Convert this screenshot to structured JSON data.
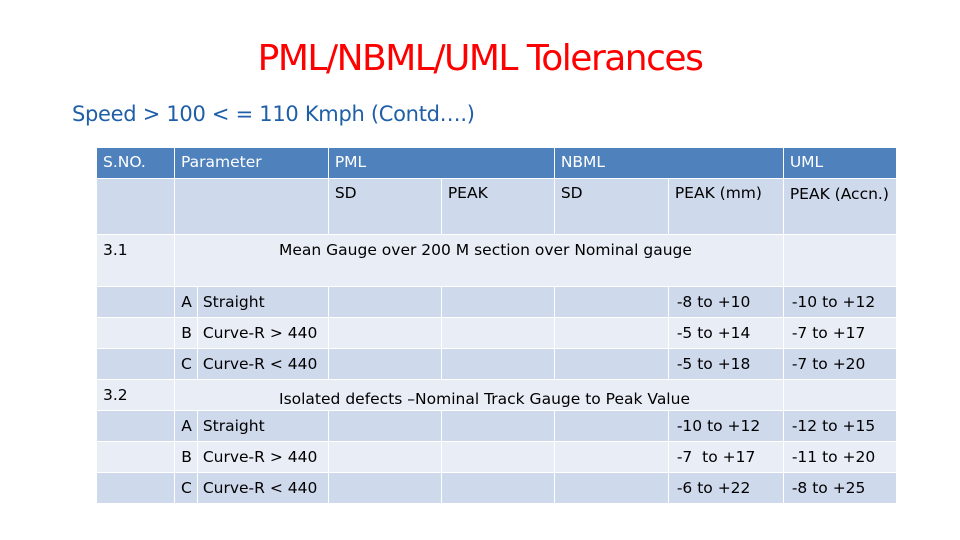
{
  "title": "PML/NBML/UML Tolerances",
  "subtitle": "Speed > 100  < = 110 Kmph (Contd….)",
  "table": {
    "headers": {
      "sno": "S.NO.",
      "parameter": "Parameter",
      "pml": "PML",
      "nbml": "NBML",
      "uml": "UML"
    },
    "subheaders": {
      "pml_sd": "SD",
      "pml_peak": "PEAK",
      "nbml_sd": "SD",
      "nbml_peak": "PEAK (mm)",
      "uml_peak": "PEAK (Accn.)"
    },
    "sections": [
      {
        "sno": "3.1",
        "title": "Mean Gauge over 200 M section over Nominal gauge",
        "rows": [
          {
            "letter": "A",
            "param": "Straight",
            "nbml_peak": "-8 to +10",
            "uml_peak": "-10 to +12"
          },
          {
            "letter": "B",
            "param": "Curve-R > 440",
            "nbml_peak": "-5 to +14",
            "uml_peak": "-7 to +17"
          },
          {
            "letter": "C",
            "param": "Curve-R < 440",
            "nbml_peak": "-5 to +18",
            "uml_peak": "-7 to +20"
          }
        ]
      },
      {
        "sno": "3.2",
        "title": "Isolated defects –Nominal Track Gauge  to Peak Value",
        "rows": [
          {
            "letter": "A",
            "param": "Straight",
            "nbml_peak": "-10 to +12",
            "uml_peak": "-12 to +15"
          },
          {
            "letter": "B",
            "param": "Curve-R > 440",
            "nbml_peak": "-7  to +17",
            "uml_peak": "-11 to +20"
          },
          {
            "letter": "C",
            "param": "Curve-R < 440",
            "nbml_peak": "-6 to +22",
            "uml_peak": "-8 to +25"
          }
        ]
      }
    ]
  },
  "colors": {
    "title": "#ff0000",
    "subtitle": "#1f5fa8",
    "header_bg": "#4f81bd",
    "row_dark": "#cfd9ec",
    "row_light": "#e9edf6"
  }
}
